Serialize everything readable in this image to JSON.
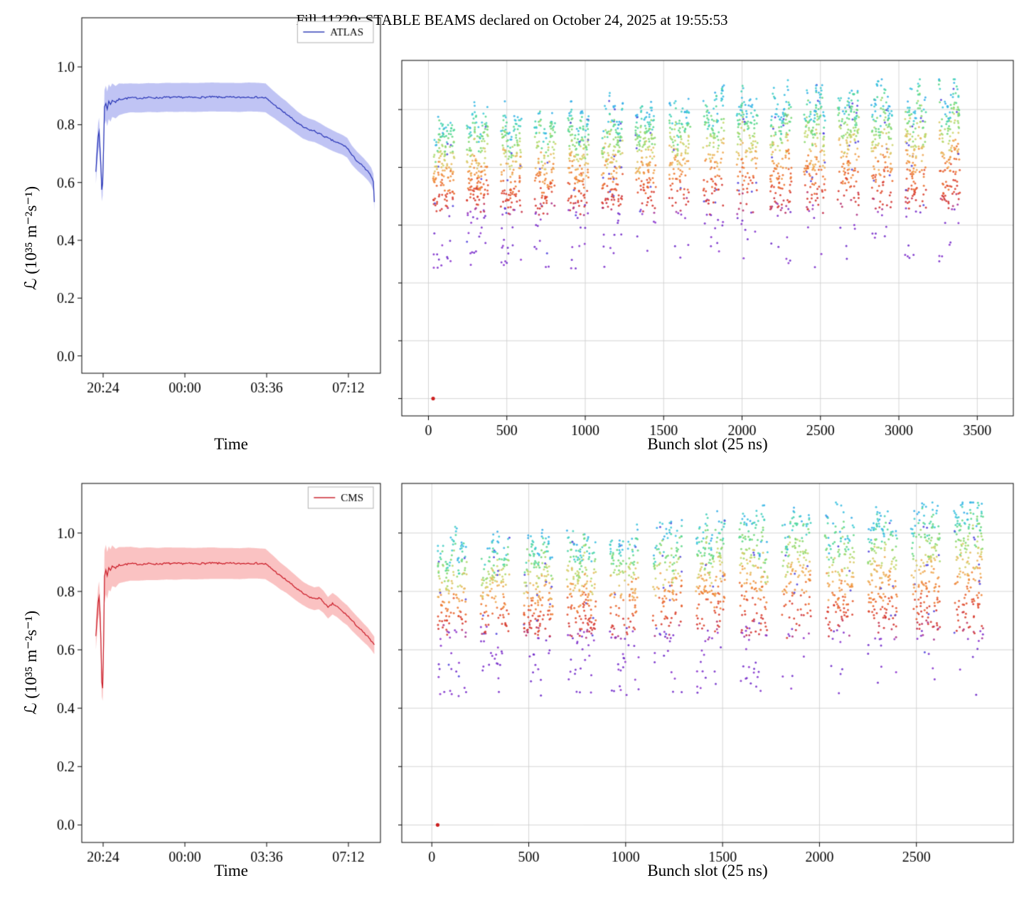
{
  "figure": {
    "title": "Fill 11220: STABLE BEAMS declared on October 24, 2025 at 19:55:53",
    "ylabel": "ℒ (10³⁵ m⁻²s⁻¹)",
    "xlabel_time": "Time",
    "xlabel_bunch": "Bunch slot (25 ns)",
    "background": "#ffffff"
  },
  "chart_data": [
    {
      "id": "atlas_time",
      "type": "line",
      "legend": "ATLAS",
      "line_color": "#2431b4",
      "band_color": "rgba(90,100,225,0.38)",
      "xlim": [
        19.46,
        32.61
      ],
      "ylim": [
        -0.06,
        1.17
      ],
      "xticks": [
        {
          "v": 20.4,
          "label": "20:24"
        },
        {
          "v": 24.0,
          "label": "00:00"
        },
        {
          "v": 27.6,
          "label": "03:36"
        },
        {
          "v": 31.2,
          "label": "07:12"
        }
      ],
      "yticks": [
        0.0,
        0.2,
        0.4,
        0.6,
        0.8,
        1.0
      ],
      "grid": false,
      "points": [
        [
          20.08,
          0.64,
          0.045
        ],
        [
          20.13,
          0.7,
          0.05
        ],
        [
          20.18,
          0.755,
          0.05
        ],
        [
          20.22,
          0.775,
          0.05
        ],
        [
          20.26,
          0.72,
          0.05
        ],
        [
          20.3,
          0.66,
          0.045
        ],
        [
          20.34,
          0.575,
          0.04
        ],
        [
          20.38,
          0.6,
          0.045
        ],
        [
          20.42,
          0.72,
          0.055
        ],
        [
          20.46,
          0.86,
          0.06
        ],
        [
          20.52,
          0.875,
          0.06
        ],
        [
          20.58,
          0.855,
          0.06
        ],
        [
          20.65,
          0.88,
          0.06
        ],
        [
          20.72,
          0.87,
          0.06
        ],
        [
          20.8,
          0.885,
          0.058
        ],
        [
          20.95,
          0.878,
          0.056
        ],
        [
          21.1,
          0.888,
          0.055
        ],
        [
          21.3,
          0.89,
          0.052
        ],
        [
          21.6,
          0.893,
          0.05
        ],
        [
          22.0,
          0.892,
          0.05
        ],
        [
          22.4,
          0.894,
          0.05
        ],
        [
          22.8,
          0.893,
          0.05
        ],
        [
          23.2,
          0.895,
          0.05
        ],
        [
          23.6,
          0.894,
          0.05
        ],
        [
          24.0,
          0.895,
          0.05
        ],
        [
          24.4,
          0.894,
          0.05
        ],
        [
          24.8,
          0.895,
          0.05
        ],
        [
          25.2,
          0.896,
          0.05
        ],
        [
          25.6,
          0.895,
          0.05
        ],
        [
          26.0,
          0.895,
          0.05
        ],
        [
          26.4,
          0.894,
          0.05
        ],
        [
          26.8,
          0.896,
          0.05
        ],
        [
          27.2,
          0.895,
          0.05
        ],
        [
          27.55,
          0.893,
          0.05
        ],
        [
          27.75,
          0.88,
          0.048
        ],
        [
          27.95,
          0.868,
          0.046
        ],
        [
          28.2,
          0.852,
          0.045
        ],
        [
          28.45,
          0.838,
          0.044
        ],
        [
          28.7,
          0.822,
          0.042
        ],
        [
          28.95,
          0.806,
          0.04
        ],
        [
          29.2,
          0.792,
          0.04
        ],
        [
          29.45,
          0.783,
          0.039
        ],
        [
          29.7,
          0.778,
          0.038
        ],
        [
          29.95,
          0.768,
          0.037
        ],
        [
          30.2,
          0.757,
          0.036
        ],
        [
          30.45,
          0.747,
          0.036
        ],
        [
          30.7,
          0.738,
          0.035
        ],
        [
          30.95,
          0.73,
          0.034
        ],
        [
          31.15,
          0.72,
          0.034
        ],
        [
          31.35,
          0.695,
          0.033
        ],
        [
          31.6,
          0.673,
          0.032
        ],
        [
          31.85,
          0.655,
          0.031
        ],
        [
          32.05,
          0.638,
          0.03
        ],
        [
          32.2,
          0.622,
          0.03
        ],
        [
          32.3,
          0.6,
          0.03
        ],
        [
          32.34,
          0.53,
          0.03
        ]
      ]
    },
    {
      "id": "atlas_bunch",
      "type": "scatter",
      "xlim": [
        -170,
        3730
      ],
      "ylim": [
        -0.06,
        1.17
      ],
      "xticks": [
        0,
        500,
        1000,
        1500,
        2000,
        2500,
        3000,
        3500
      ],
      "yticks": [
        0.0,
        0.2,
        0.4,
        0.6,
        0.8,
        1.0
      ],
      "grid": true,
      "seed": 1337,
      "trains": {
        "count": 16,
        "start": 30,
        "pitch": 215,
        "width": 135,
        "points_per_train": 170,
        "span": 3400
      },
      "envelope": {
        "top_start": 0.96,
        "top_end": 1.09,
        "bottom": 0.63
      },
      "tail": {
        "fraction": 0.07,
        "min": 0.45,
        "max": 0.67
      },
      "origin_point": {
        "x": 30,
        "y": 0.0,
        "color": "#cc2020"
      },
      "colormap": [
        [
          0.0,
          "#6a28c8"
        ],
        [
          0.1,
          "#8f36cf"
        ],
        [
          0.2,
          "#d03030"
        ],
        [
          0.34,
          "#e04a2e"
        ],
        [
          0.46,
          "#ef7e30"
        ],
        [
          0.58,
          "#efb25c"
        ],
        [
          0.68,
          "#c8da6e"
        ],
        [
          0.78,
          "#84d86e"
        ],
        [
          0.87,
          "#4fd898"
        ],
        [
          0.94,
          "#3ec8dc"
        ],
        [
          1.0,
          "#35aee8"
        ]
      ],
      "outlier_color": "#5246dd",
      "outlier_fraction": 0.035
    },
    {
      "id": "cms_time",
      "type": "line",
      "legend": "CMS",
      "line_color": "#c81622",
      "band_color": "rgba(244,110,110,0.42)",
      "xlim": [
        19.46,
        32.61
      ],
      "ylim": [
        -0.06,
        1.17
      ],
      "xticks": [
        {
          "v": 20.4,
          "label": "20:24"
        },
        {
          "v": 24.0,
          "label": "00:00"
        },
        {
          "v": 27.6,
          "label": "03:36"
        },
        {
          "v": 31.2,
          "label": "07:12"
        }
      ],
      "yticks": [
        0.0,
        0.2,
        0.4,
        0.6,
        0.8,
        1.0
      ],
      "grid": false,
      "points": [
        [
          20.08,
          0.65,
          0.05
        ],
        [
          20.13,
          0.705,
          0.055
        ],
        [
          20.18,
          0.76,
          0.055
        ],
        [
          20.22,
          0.78,
          0.055
        ],
        [
          20.26,
          0.73,
          0.06
        ],
        [
          20.3,
          0.64,
          0.07
        ],
        [
          20.34,
          0.49,
          0.05
        ],
        [
          20.38,
          0.47,
          0.045
        ],
        [
          20.42,
          0.62,
          0.08
        ],
        [
          20.46,
          0.85,
          0.09
        ],
        [
          20.52,
          0.875,
          0.085
        ],
        [
          20.58,
          0.855,
          0.08
        ],
        [
          20.65,
          0.88,
          0.075
        ],
        [
          20.72,
          0.872,
          0.072
        ],
        [
          20.8,
          0.888,
          0.07
        ],
        [
          20.95,
          0.88,
          0.066
        ],
        [
          21.1,
          0.89,
          0.062
        ],
        [
          21.3,
          0.892,
          0.06
        ],
        [
          21.6,
          0.895,
          0.058
        ],
        [
          22.0,
          0.893,
          0.056
        ],
        [
          22.4,
          0.895,
          0.056
        ],
        [
          22.8,
          0.894,
          0.055
        ],
        [
          23.2,
          0.896,
          0.055
        ],
        [
          23.6,
          0.895,
          0.055
        ],
        [
          24.0,
          0.896,
          0.054
        ],
        [
          24.4,
          0.895,
          0.054
        ],
        [
          24.8,
          0.896,
          0.054
        ],
        [
          25.2,
          0.897,
          0.054
        ],
        [
          25.6,
          0.896,
          0.053
        ],
        [
          26.0,
          0.896,
          0.053
        ],
        [
          26.4,
          0.895,
          0.053
        ],
        [
          26.8,
          0.897,
          0.053
        ],
        [
          27.2,
          0.896,
          0.052
        ],
        [
          27.55,
          0.894,
          0.052
        ],
        [
          27.75,
          0.882,
          0.05
        ],
        [
          27.95,
          0.87,
          0.048
        ],
        [
          28.2,
          0.853,
          0.046
        ],
        [
          28.45,
          0.84,
          0.044
        ],
        [
          28.7,
          0.824,
          0.043
        ],
        [
          28.95,
          0.808,
          0.042
        ],
        [
          29.2,
          0.793,
          0.04
        ],
        [
          29.45,
          0.782,
          0.04
        ],
        [
          29.7,
          0.775,
          0.039
        ],
        [
          29.9,
          0.778,
          0.039
        ],
        [
          30.1,
          0.765,
          0.038
        ],
        [
          30.3,
          0.744,
          0.037
        ],
        [
          30.5,
          0.758,
          0.037
        ],
        [
          30.7,
          0.748,
          0.036
        ],
        [
          30.95,
          0.73,
          0.035
        ],
        [
          31.15,
          0.718,
          0.034
        ],
        [
          31.35,
          0.7,
          0.034
        ],
        [
          31.6,
          0.68,
          0.033
        ],
        [
          31.85,
          0.66,
          0.032
        ],
        [
          32.05,
          0.645,
          0.031
        ],
        [
          32.2,
          0.63,
          0.03
        ],
        [
          32.34,
          0.615,
          0.03
        ]
      ]
    },
    {
      "id": "cms_bunch",
      "type": "scatter",
      "xlim": [
        -155,
        3000
      ],
      "ylim": [
        -0.06,
        1.17
      ],
      "xticks": [
        0,
        500,
        1000,
        1500,
        2000,
        2500
      ],
      "yticks": [
        0.0,
        0.2,
        0.4,
        0.6,
        0.8,
        1.0
      ],
      "grid": true,
      "seed": 2025,
      "trains": {
        "count": 13,
        "start": 30,
        "pitch": 222,
        "width": 150,
        "points_per_train": 185,
        "span": 2850
      },
      "envelope": {
        "top_start": 0.97,
        "top_end": 1.09,
        "bottom": 0.63
      },
      "tail": {
        "fraction": 0.1,
        "min": 0.44,
        "max": 0.68
      },
      "origin_point": {
        "x": 30,
        "y": 0.0,
        "color": "#cc2020"
      },
      "colormap": [
        [
          0.0,
          "#6a28c8"
        ],
        [
          0.1,
          "#8f36cf"
        ],
        [
          0.2,
          "#d03030"
        ],
        [
          0.34,
          "#e04a2e"
        ],
        [
          0.46,
          "#ef7e30"
        ],
        [
          0.58,
          "#efb25c"
        ],
        [
          0.68,
          "#c8da6e"
        ],
        [
          0.78,
          "#84d86e"
        ],
        [
          0.87,
          "#4fd898"
        ],
        [
          0.94,
          "#3ec8dc"
        ],
        [
          1.0,
          "#35aee8"
        ]
      ],
      "outlier_color": "#5246dd",
      "outlier_fraction": 0.035
    }
  ]
}
